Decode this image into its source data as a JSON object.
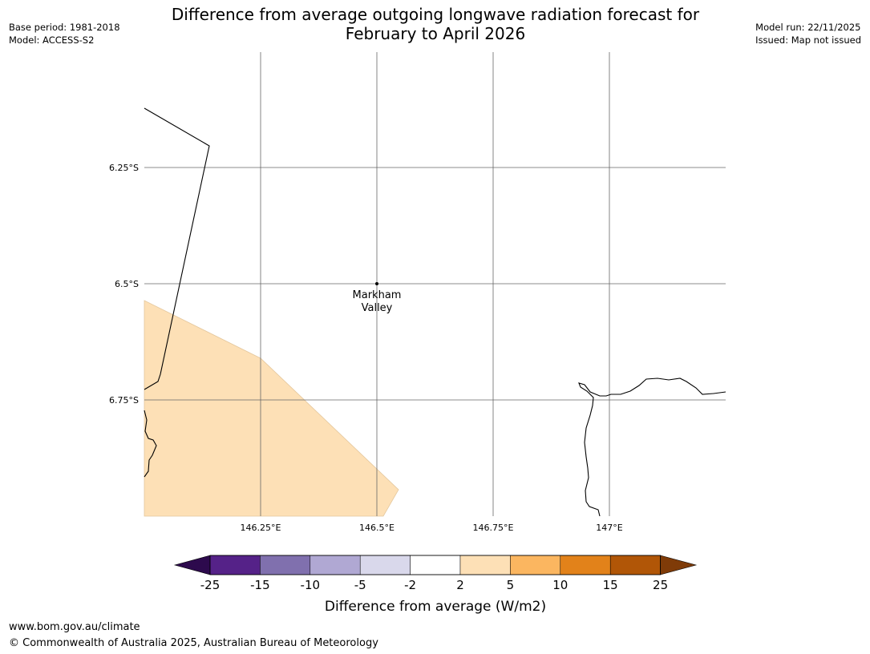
{
  "header": {
    "title_line1": "Difference from average outgoing longwave radiation forecast for",
    "title_line2": "February to April 2026",
    "base_period": "Base period: 1981-2018",
    "model": "Model: ACCESS-S2",
    "model_run": "Model run: 22/11/2025",
    "issued": "Issued: Map not issued"
  },
  "map": {
    "lat_labels": [
      "6.25°S",
      "6.5°S",
      "6.75°S"
    ],
    "lon_labels": [
      "146.25°E",
      "146.5°E",
      "146.75°E",
      "147°E"
    ],
    "place": {
      "name_line1": "Markham",
      "name_line2": "Valley"
    },
    "shaded_category": "2 to 5",
    "shade_color": "#fde0b6"
  },
  "legend": {
    "title": "Difference from average (W/m2)",
    "ticks": [
      "-25",
      "-15",
      "-10",
      "-5",
      "-2",
      "2",
      "5",
      "10",
      "15",
      "25"
    ],
    "colors": {
      "below_min": "#2d0a4d",
      "bins": [
        "#552288",
        "#8070ae",
        "#b0a8d3",
        "#d9d8eb",
        "#ffffff",
        "#fde0b6",
        "#fbb660",
        "#e2821a",
        "#b15607"
      ],
      "above_max": "#7f3b08"
    }
  },
  "footer": {
    "url": "www.bom.gov.au/climate",
    "copyright": "© Commonwealth of Australia 2025, Australian Bureau of Meteorology"
  }
}
